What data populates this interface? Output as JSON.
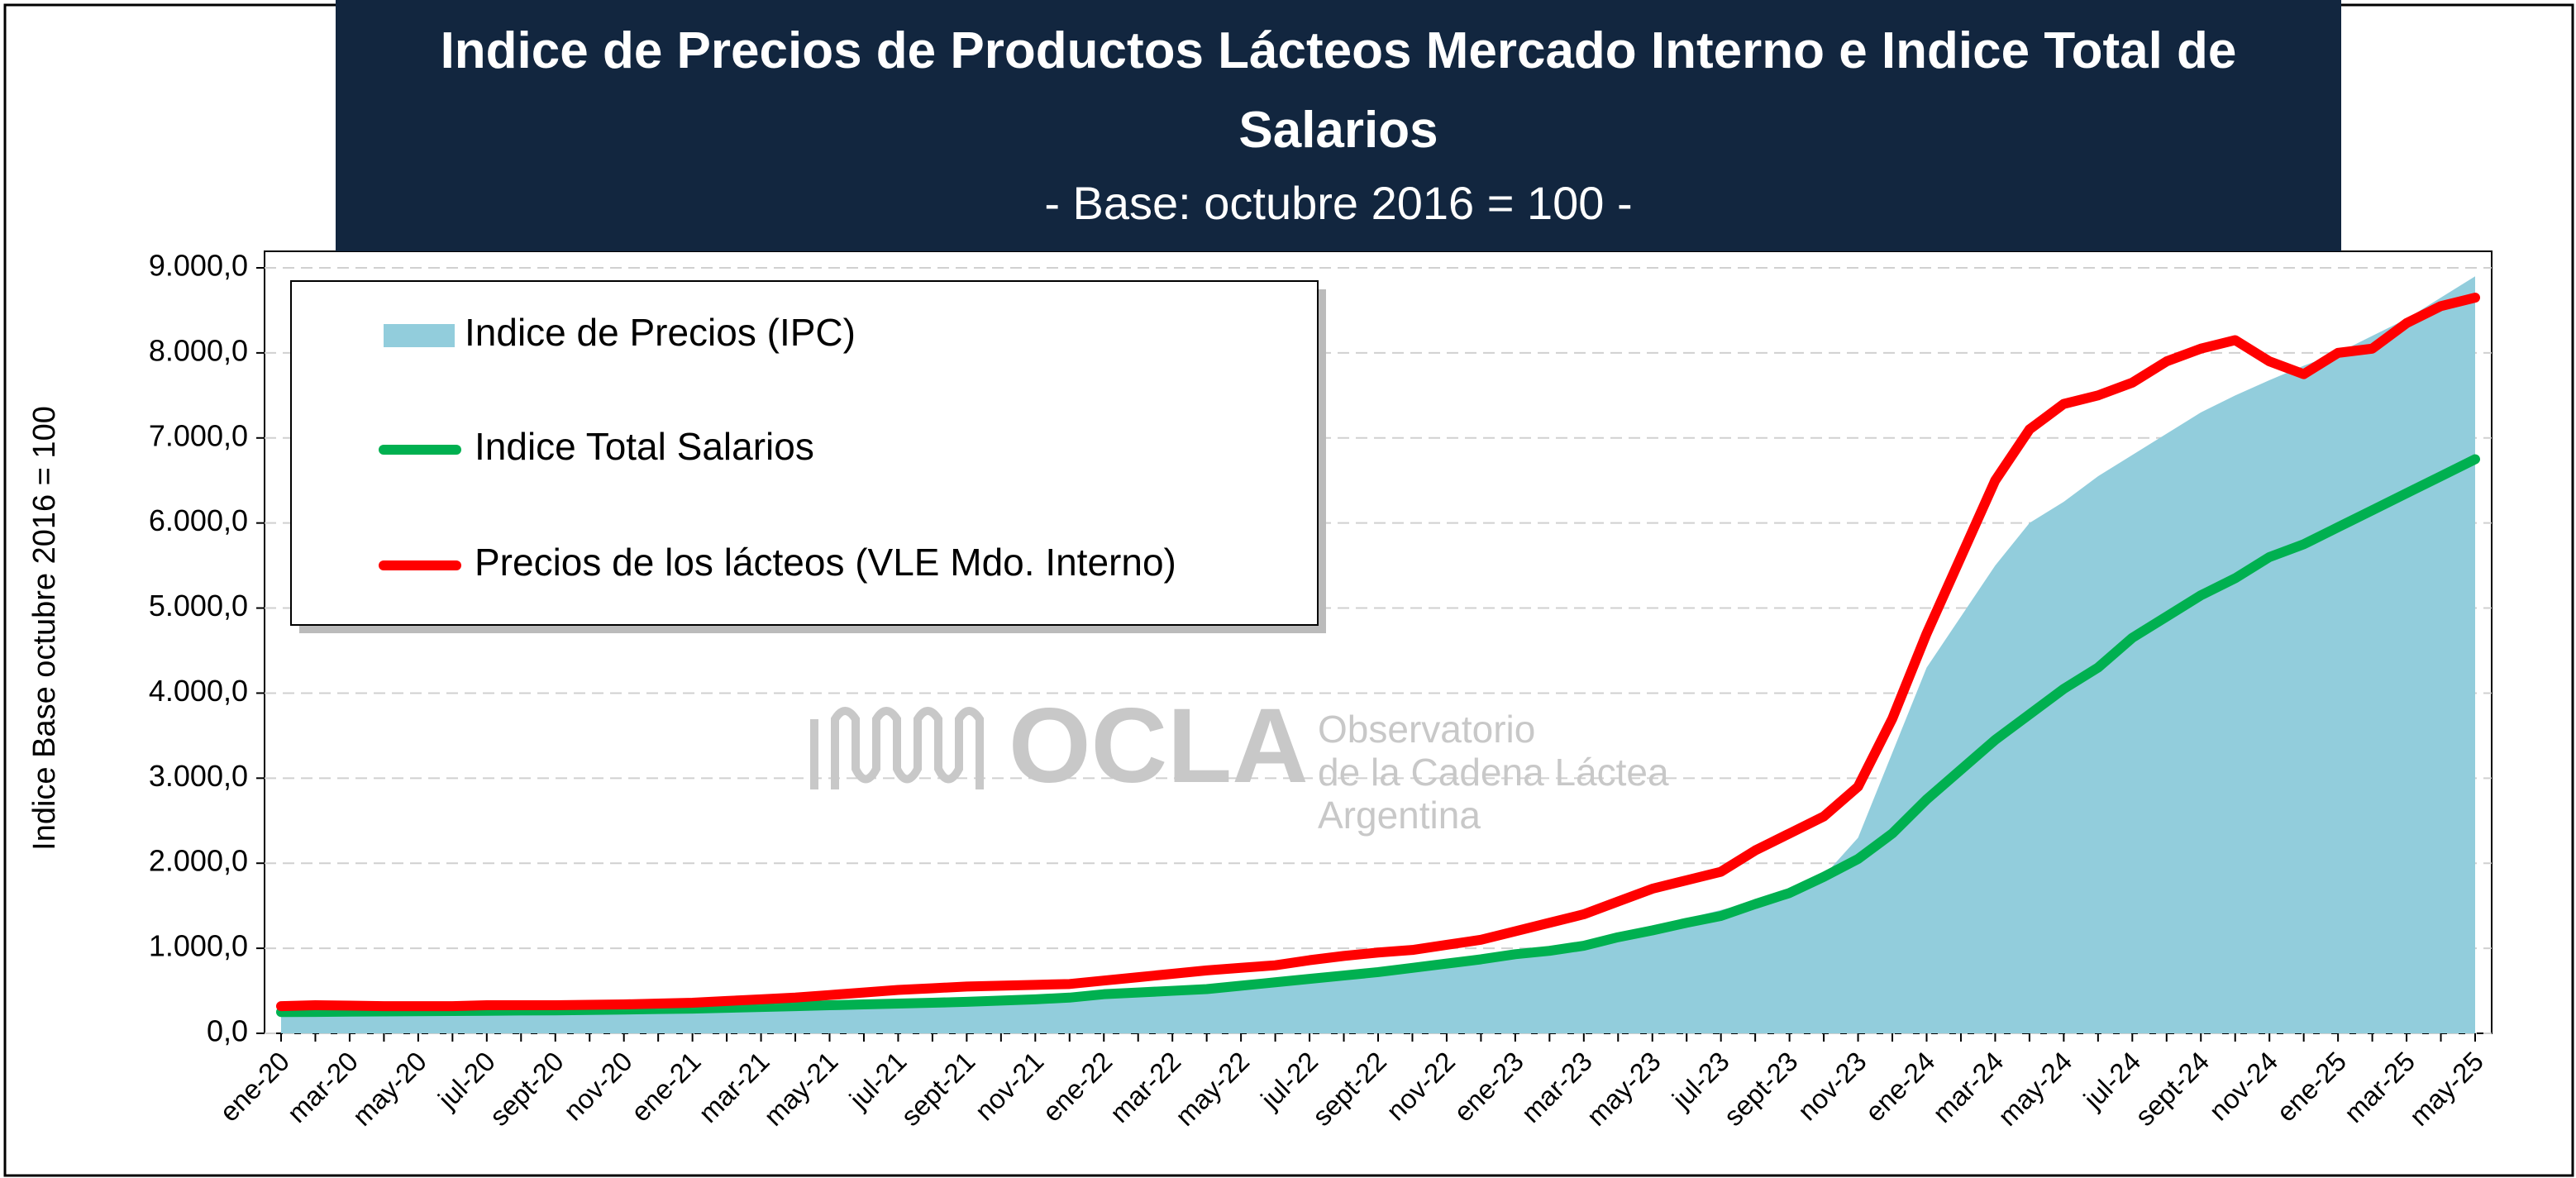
{
  "chart_data": {
    "type": "area-line",
    "title": "Indice de Precios de Productos Lácteos Mercado Interno e Indice Total de Salarios",
    "subtitle": "- Base: octubre 2016 = 100 -",
    "y_label": "Indice Base octubre 2016 = 100",
    "annotations": [
      "OCLA",
      "Observatorio",
      "de la Cadena Láctea",
      "Argentina"
    ],
    "categories": [
      "ene-20",
      null,
      "mar-20",
      null,
      "may-20",
      null,
      "jul-20",
      null,
      "sept-20",
      null,
      "nov-20",
      null,
      "ene-21",
      null,
      "mar-21",
      null,
      "may-21",
      null,
      "jul-21",
      null,
      "sept-21",
      null,
      "nov-21",
      null,
      "ene-22",
      null,
      "mar-22",
      null,
      "may-22",
      null,
      "jul-22",
      null,
      "sept-22",
      null,
      "nov-22",
      null,
      "ene-23",
      null,
      "mar-23",
      null,
      "may-23",
      null,
      "jul-23",
      null,
      "sept-23",
      null,
      "nov-23",
      null,
      "ene-24",
      null,
      "mar-24",
      null,
      "may-24",
      null,
      "jul-24",
      null,
      "sept-24",
      null,
      "nov-24",
      null,
      "ene-25",
      null,
      "mar-25",
      null,
      "may-25"
    ],
    "series": [
      {
        "name": "Indice de Precios (IPC)",
        "kind": "area",
        "color": "#92cddc",
        "values": [
          230,
          235,
          240,
          245,
          250,
          255,
          260,
          265,
          270,
          275,
          280,
          290,
          300,
          310,
          320,
          330,
          340,
          350,
          360,
          370,
          380,
          395,
          410,
          430,
          470,
          490,
          520,
          550,
          580,
          610,
          650,
          700,
          750,
          800,
          850,
          900,
          950,
          1000,
          1080,
          1180,
          1270,
          1350,
          1450,
          1550,
          1700,
          1850,
          2300,
          3300,
          4300,
          4900,
          5500,
          6000,
          6250,
          6550,
          6800,
          7050,
          7300,
          7500,
          7680,
          7850,
          8000,
          8200,
          8400,
          8650,
          8900
        ]
      },
      {
        "name": "Indice Total Salarios",
        "kind": "line",
        "color": "#00b050",
        "values": [
          250,
          252,
          255,
          258,
          260,
          262,
          265,
          268,
          270,
          275,
          280,
          285,
          290,
          300,
          310,
          320,
          330,
          340,
          350,
          360,
          370,
          385,
          400,
          420,
          460,
          480,
          500,
          520,
          560,
          600,
          640,
          680,
          720,
          770,
          820,
          870,
          930,
          970,
          1030,
          1130,
          1210,
          1300,
          1380,
          1520,
          1650,
          1840,
          2050,
          2350,
          2750,
          3100,
          3450,
          3750,
          4050,
          4300,
          4650,
          4900,
          5150,
          5350,
          5600,
          5750,
          5950,
          6150,
          6350,
          6550,
          6750
        ]
      },
      {
        "name": "Precios de los lácteos (VLE Mdo. Interno)",
        "kind": "line",
        "color": "#ff0000",
        "values": [
          320,
          330,
          325,
          320,
          320,
          320,
          330,
          330,
          330,
          335,
          340,
          350,
          360,
          380,
          400,
          420,
          450,
          480,
          510,
          530,
          550,
          560,
          570,
          580,
          620,
          660,
          700,
          740,
          770,
          800,
          860,
          910,
          950,
          980,
          1040,
          1100,
          1200,
          1300,
          1400,
          1550,
          1700,
          1800,
          1900,
          2150,
          2350,
          2550,
          2900,
          3700,
          4700,
          5600,
          6500,
          7100,
          7400,
          7500,
          7650,
          7900,
          8050,
          8150,
          7900,
          7750,
          8000,
          8050,
          8350,
          8550,
          8650
        ]
      }
    ],
    "ylim": [
      0,
      9000
    ],
    "yticks": [
      {
        "value": 0,
        "label": "0,0"
      },
      {
        "value": 1000,
        "label": "1.000,0"
      },
      {
        "value": 2000,
        "label": "2.000,0"
      },
      {
        "value": 3000,
        "label": "3.000,0"
      },
      {
        "value": 4000,
        "label": "4.000,0"
      },
      {
        "value": 5000,
        "label": "5.000,0"
      },
      {
        "value": 6000,
        "label": "6.000,0"
      },
      {
        "value": 7000,
        "label": "7.000,0"
      },
      {
        "value": 8000,
        "label": "8.000,0"
      },
      {
        "value": 9000,
        "label": "9.000,0"
      }
    ],
    "grid": true
  }
}
